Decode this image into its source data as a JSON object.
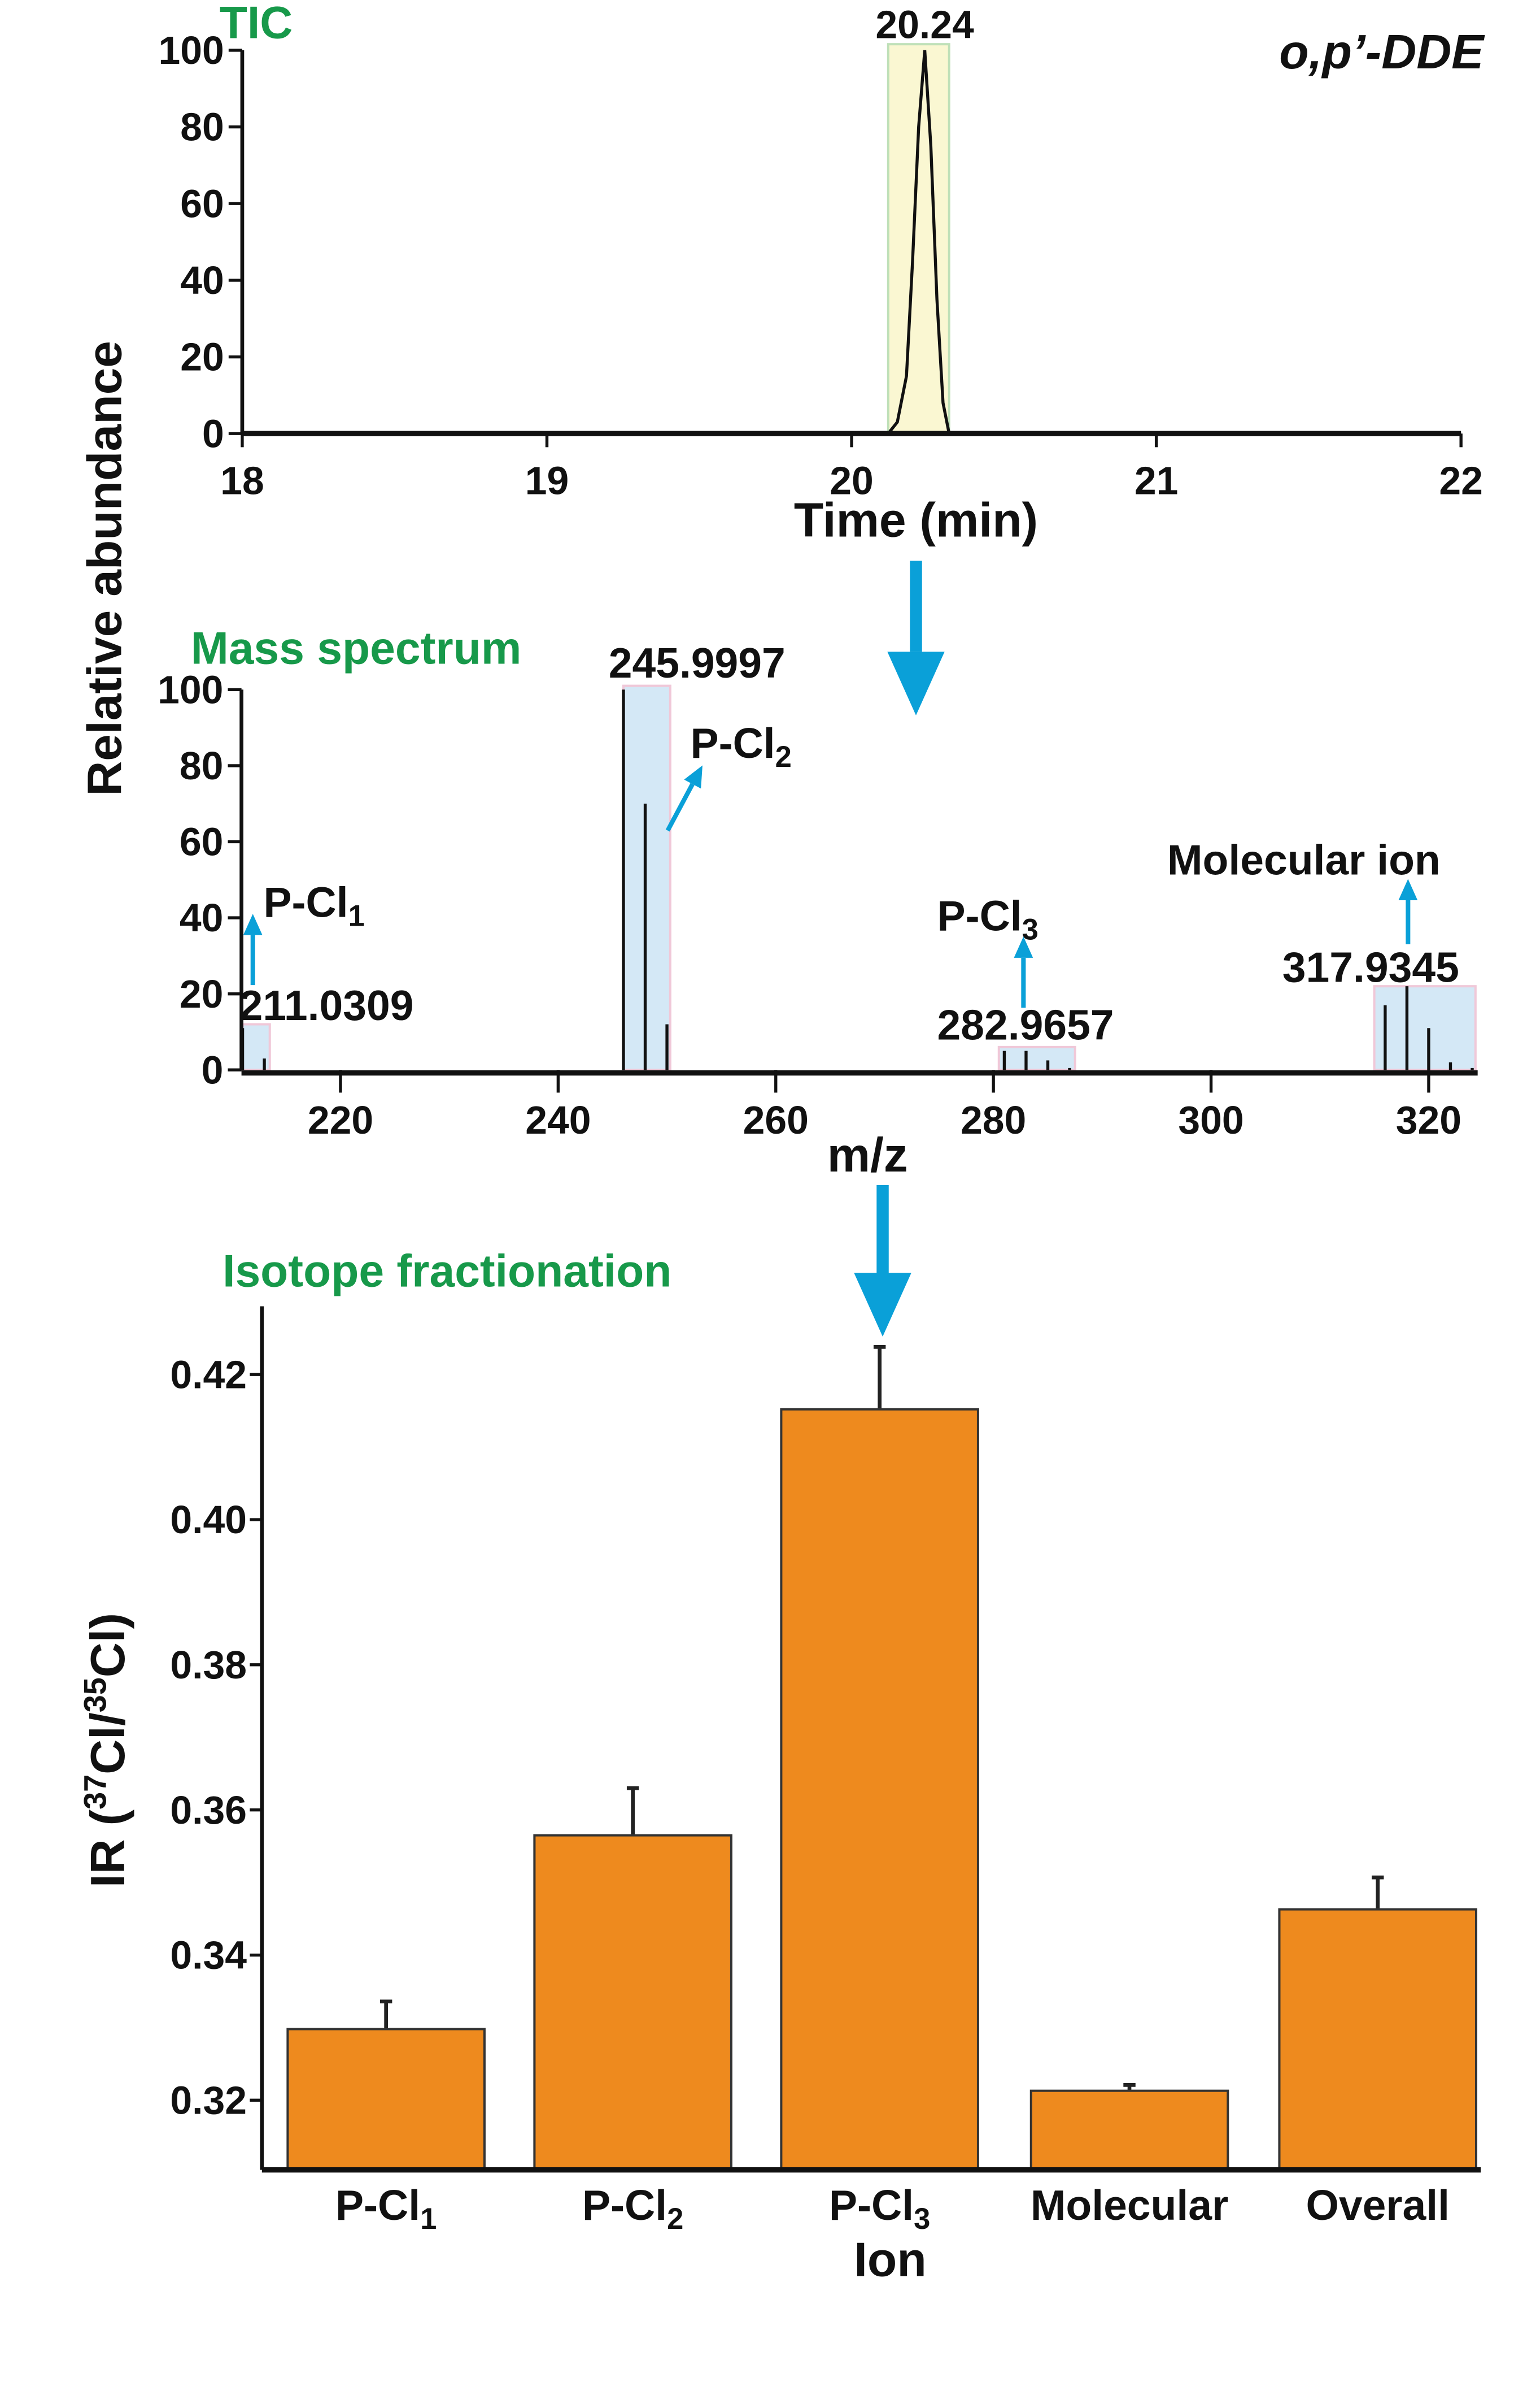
{
  "compound_label": "o,p’-DDE",
  "shared_ylabel": "Relative abundance",
  "colors": {
    "bar": "#EE8A1E",
    "arrow": "#0AA0D8",
    "title_green": "#17994a",
    "tic_highlight": "#FAF7D2",
    "ms_highlight": "#D4E8F6"
  },
  "chart_data": [
    {
      "type": "line",
      "title": "TIC",
      "xlabel": "Time (min)",
      "ylabel": "Relative abundance",
      "xlim": [
        18,
        22
      ],
      "ylim": [
        0,
        100
      ],
      "xticks": [
        "18",
        "19",
        "20",
        "21",
        "22"
      ],
      "yticks": [
        "0",
        "20",
        "40",
        "60",
        "80",
        "100"
      ],
      "peak_label": "20.24",
      "highlight_window": [
        20.12,
        20.32
      ],
      "points": [
        [
          18,
          0
        ],
        [
          20.12,
          0
        ],
        [
          20.15,
          3
        ],
        [
          20.18,
          15
        ],
        [
          20.2,
          45
        ],
        [
          20.22,
          80
        ],
        [
          20.24,
          100
        ],
        [
          20.26,
          75
        ],
        [
          20.28,
          35
        ],
        [
          20.3,
          8
        ],
        [
          20.32,
          0
        ],
        [
          22,
          0
        ]
      ]
    },
    {
      "type": "bar",
      "title": "Mass spectrum",
      "xlabel": "m/z",
      "ylabel": "Relative abundance",
      "xlim": [
        210.9,
        324.5
      ],
      "ylim": [
        0,
        100
      ],
      "xticks": [
        "220",
        "240",
        "260",
        "280",
        "300",
        "320"
      ],
      "yticks": [
        "0",
        "20",
        "40",
        "60",
        "80",
        "100"
      ],
      "peaks": [
        [
          211,
          11
        ],
        [
          213,
          3
        ],
        [
          246,
          100
        ],
        [
          248,
          70
        ],
        [
          250,
          12
        ],
        [
          281,
          5
        ],
        [
          283,
          5
        ],
        [
          285,
          2.5
        ],
        [
          287,
          0.5
        ],
        [
          316,
          17
        ],
        [
          318,
          22
        ],
        [
          320,
          11
        ],
        [
          322,
          2
        ],
        [
          324,
          0.5
        ]
      ],
      "groups": [
        {
          "range": [
            211,
            213.5
          ],
          "max": 12,
          "mz_label": "211.0309",
          "ion": "P-Cl",
          "sub": "1"
        },
        {
          "range": [
            246,
            250.3
          ],
          "max": 101,
          "mz_label": "245.9997",
          "ion": "P-Cl",
          "sub": "2"
        },
        {
          "range": [
            280.5,
            287.5
          ],
          "max": 6,
          "mz_label": "282.9657",
          "ion": "P-Cl",
          "sub": "3"
        },
        {
          "range": [
            315,
            324.3
          ],
          "max": 22,
          "mz_label": "317.9345",
          "ion": "Molecular ion",
          "sub": ""
        }
      ]
    },
    {
      "type": "bar",
      "title": "Isotope fractionation",
      "xlabel": "Ion",
      "ylabel": {
        "pre": "IR (",
        "sup1": "37",
        "mid": "Cl/",
        "sup2": "35",
        "post": "Cl)"
      },
      "ylim": [
        0.3104,
        0.4294
      ],
      "yticks": [
        "0.32",
        "0.34",
        "0.36",
        "0.38",
        "0.40",
        "0.42"
      ],
      "categories": [
        {
          "text": "P-Cl",
          "sub": "1"
        },
        {
          "text": "P-Cl",
          "sub": "2"
        },
        {
          "text": "P-Cl",
          "sub": "3"
        },
        {
          "text": "Molecular",
          "sub": ""
        },
        {
          "text": "Overall",
          "sub": ""
        }
      ],
      "values": [
        0.3298,
        0.3565,
        0.4152,
        0.3213,
        0.3463
      ],
      "errors": [
        0.0038,
        0.0065,
        0.0086,
        0.0008,
        0.0044
      ]
    }
  ]
}
